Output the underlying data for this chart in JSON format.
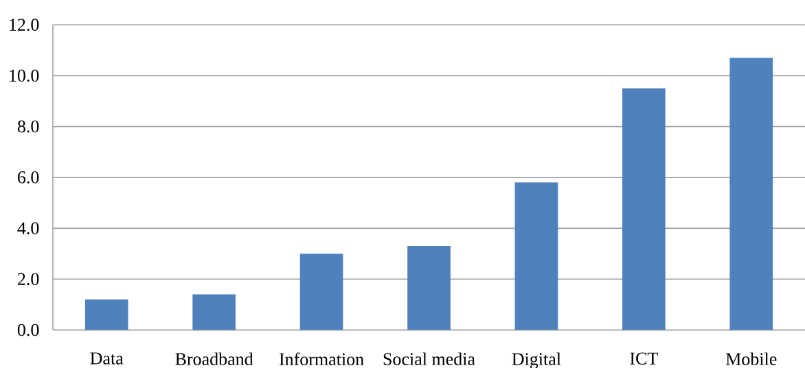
{
  "chart_data": {
    "type": "bar",
    "categories": [
      "Data",
      "Broadband",
      "Information",
      "Social media",
      "Digital",
      "ICT",
      "Mobile"
    ],
    "values": [
      1.2,
      1.4,
      3.0,
      3.3,
      5.8,
      9.5,
      10.7
    ],
    "color": "#4f81bd",
    "ylim": [
      0,
      12
    ],
    "yticks": [
      {
        "value": 0,
        "label": "0.0"
      },
      {
        "value": 2,
        "label": "2.0"
      },
      {
        "value": 4,
        "label": "4.0"
      },
      {
        "value": 6,
        "label": "6.0"
      },
      {
        "value": 8,
        "label": "8.0"
      },
      {
        "value": 10,
        "label": "10.0"
      },
      {
        "value": 12,
        "label": "12.0"
      }
    ],
    "grid": "y"
  }
}
